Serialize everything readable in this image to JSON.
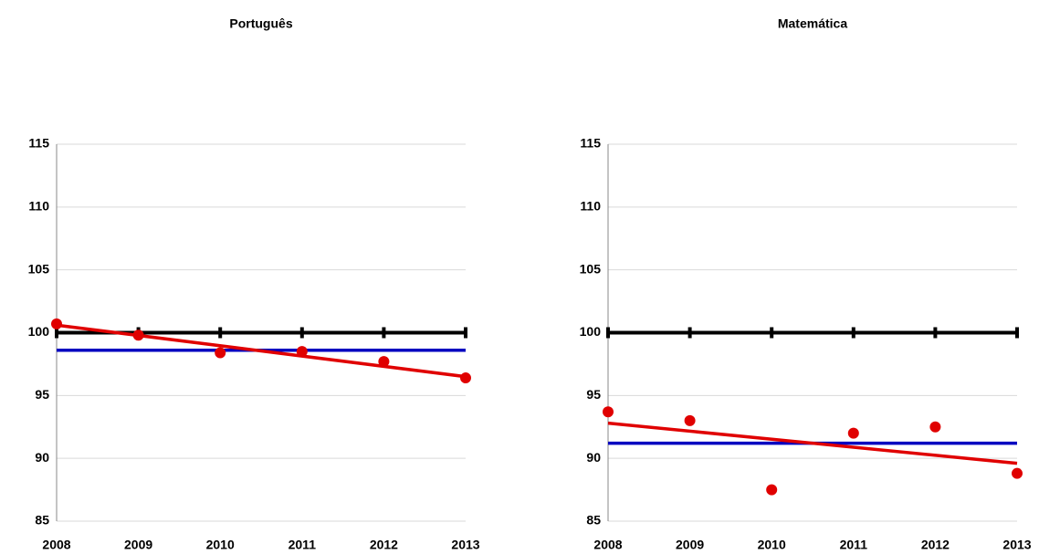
{
  "chart_data": [
    {
      "type": "scatter",
      "title": "Português",
      "xlim": [
        2008,
        2013
      ],
      "xticks": [
        2008,
        2009,
        2010,
        2011,
        2012,
        2013
      ],
      "ylim": [
        85,
        115
      ],
      "yticks": [
        85,
        90,
        95,
        100,
        105,
        110,
        115
      ],
      "grid": true,
      "series": [
        {
          "mode": "ticks",
          "color": "#000000",
          "x": [
            2008,
            2009,
            2010,
            2011,
            2012,
            2013
          ],
          "values": [
            100,
            100,
            100,
            100,
            100,
            100
          ]
        },
        {
          "mode": "line",
          "color": "#0000c0",
          "x": [
            2008,
            2013
          ],
          "values": [
            98.6,
            98.6
          ]
        },
        {
          "mode": "line",
          "color": "#e00000",
          "x": [
            2008,
            2013
          ],
          "values": [
            100.6,
            96.5
          ]
        },
        {
          "mode": "markers",
          "color": "#e00000",
          "x": [
            2008,
            2009,
            2010,
            2011,
            2012,
            2013
          ],
          "values": [
            100.7,
            99.8,
            98.4,
            98.5,
            97.7,
            96.4
          ]
        }
      ]
    },
    {
      "type": "scatter",
      "title": "Matemática",
      "xlim": [
        2008,
        2013
      ],
      "xticks": [
        2008,
        2009,
        2010,
        2011,
        2012,
        2013
      ],
      "ylim": [
        85,
        115
      ],
      "yticks": [
        85,
        90,
        95,
        100,
        105,
        110,
        115
      ],
      "grid": true,
      "series": [
        {
          "mode": "ticks",
          "color": "#000000",
          "x": [
            2008,
            2009,
            2010,
            2011,
            2012,
            2013
          ],
          "values": [
            100,
            100,
            100,
            100,
            100,
            100
          ]
        },
        {
          "mode": "line",
          "color": "#0000c0",
          "x": [
            2008,
            2013
          ],
          "values": [
            91.2,
            91.2
          ]
        },
        {
          "mode": "line",
          "color": "#e00000",
          "x": [
            2008,
            2013
          ],
          "values": [
            92.8,
            89.6
          ]
        },
        {
          "mode": "markers",
          "color": "#e00000",
          "x": [
            2008,
            2009,
            2010,
            2011,
            2012,
            2013
          ],
          "values": [
            93.7,
            93.0,
            87.5,
            92.0,
            92.5,
            88.8
          ]
        }
      ]
    }
  ]
}
